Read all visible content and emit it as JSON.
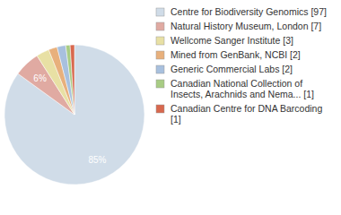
{
  "chart_data": {
    "type": "pie",
    "categories": [
      "Centre for Biodiversity Genomics [97]",
      "Natural History Museum, London [7]",
      "Wellcome Sanger Institute [3]",
      "Mined from GenBank, NCBI [2]",
      "Generic Commercial Labs [2]",
      "Canadian National Collection of Insects, Arachnids and Nema... [1]",
      "Canadian Centre for DNA Barcoding [1]"
    ],
    "values": [
      85,
      6,
      3,
      2,
      2,
      1,
      1
    ],
    "value_labels": [
      "85%",
      "6%",
      null,
      null,
      null,
      null,
      null
    ],
    "colors": [
      "#d0dce8",
      "#e0aaa2",
      "#e8e0a4",
      "#e8b07c",
      "#a8c0de",
      "#a8cc84",
      "#d8684e"
    ],
    "data_labels": true,
    "legend": "right"
  }
}
